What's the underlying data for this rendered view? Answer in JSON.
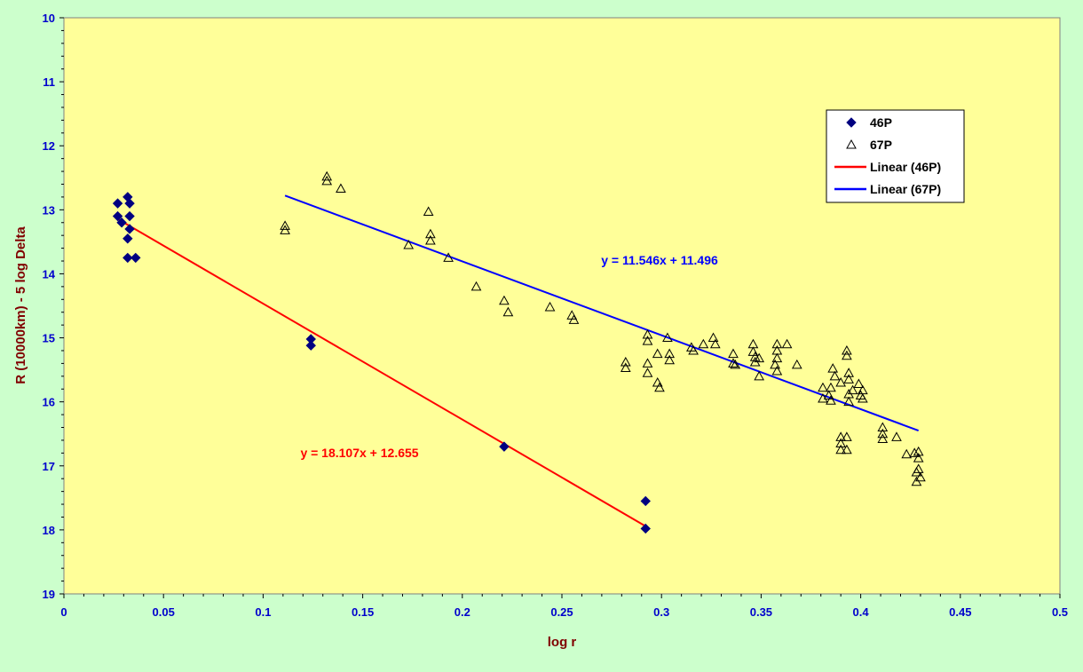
{
  "chart_data": {
    "type": "scatter",
    "title": "",
    "xlabel": "log r",
    "ylabel": "R (10000km) - 5 log Delta",
    "xlim": [
      0,
      0.5
    ],
    "ylim": [
      10,
      19
    ],
    "y_inverted": true,
    "x_ticks": [
      "0",
      "0.05",
      "0.1",
      "0.15",
      "0.2",
      "0.25",
      "0.3",
      "0.35",
      "0.4",
      "0.45",
      "0.5"
    ],
    "y_ticks": [
      "10",
      "11",
      "12",
      "13",
      "14",
      "15",
      "16",
      "17",
      "18",
      "19"
    ],
    "grid": false,
    "legend_position": "top-right",
    "colors": {
      "background": "#ccffcc",
      "plot_area": "#ffff99",
      "axis_text_x": "#0000cc",
      "axis_text_y": "#0000cc",
      "axis_title": "#800000",
      "series_46P": "#000080",
      "series_67P": "#000000",
      "fit_46P": "#ff0000",
      "fit_67P": "#0000ff"
    },
    "series": [
      {
        "name": "46P",
        "marker": "diamond",
        "points": [
          [
            0.027,
            12.9
          ],
          [
            0.027,
            13.1
          ],
          [
            0.029,
            13.2
          ],
          [
            0.032,
            12.8
          ],
          [
            0.033,
            12.9
          ],
          [
            0.033,
            13.1
          ],
          [
            0.033,
            13.3
          ],
          [
            0.032,
            13.45
          ],
          [
            0.032,
            13.75
          ],
          [
            0.036,
            13.75
          ],
          [
            0.124,
            15.02
          ],
          [
            0.124,
            15.12
          ],
          [
            0.221,
            16.7
          ],
          [
            0.292,
            17.55
          ],
          [
            0.292,
            17.98
          ]
        ]
      },
      {
        "name": "67P",
        "marker": "triangle-open",
        "points": [
          [
            0.111,
            13.25
          ],
          [
            0.111,
            13.32
          ],
          [
            0.132,
            12.48
          ],
          [
            0.132,
            12.55
          ],
          [
            0.139,
            12.67
          ],
          [
            0.173,
            13.55
          ],
          [
            0.183,
            13.03
          ],
          [
            0.184,
            13.38
          ],
          [
            0.184,
            13.48
          ],
          [
            0.193,
            13.75
          ],
          [
            0.207,
            14.2
          ],
          [
            0.221,
            14.42
          ],
          [
            0.223,
            14.6
          ],
          [
            0.244,
            14.52
          ],
          [
            0.255,
            14.65
          ],
          [
            0.256,
            14.72
          ],
          [
            0.282,
            15.38
          ],
          [
            0.282,
            15.47
          ],
          [
            0.293,
            14.95
          ],
          [
            0.293,
            15.05
          ],
          [
            0.293,
            15.4
          ],
          [
            0.293,
            15.55
          ],
          [
            0.298,
            15.7
          ],
          [
            0.298,
            15.25
          ],
          [
            0.299,
            15.78
          ],
          [
            0.303,
            15.0
          ],
          [
            0.304,
            15.25
          ],
          [
            0.304,
            15.35
          ],
          [
            0.315,
            15.15
          ],
          [
            0.316,
            15.2
          ],
          [
            0.321,
            15.1
          ],
          [
            0.326,
            15.0
          ],
          [
            0.327,
            15.1
          ],
          [
            0.336,
            15.25
          ],
          [
            0.336,
            15.4
          ],
          [
            0.337,
            15.42
          ],
          [
            0.346,
            15.1
          ],
          [
            0.346,
            15.22
          ],
          [
            0.347,
            15.3
          ],
          [
            0.347,
            15.38
          ],
          [
            0.349,
            15.32
          ],
          [
            0.349,
            15.6
          ],
          [
            0.357,
            15.42
          ],
          [
            0.358,
            15.1
          ],
          [
            0.358,
            15.2
          ],
          [
            0.358,
            15.32
          ],
          [
            0.358,
            15.52
          ],
          [
            0.363,
            15.1
          ],
          [
            0.368,
            15.42
          ],
          [
            0.381,
            15.78
          ],
          [
            0.381,
            15.95
          ],
          [
            0.384,
            15.9
          ],
          [
            0.385,
            15.78
          ],
          [
            0.385,
            15.98
          ],
          [
            0.386,
            15.48
          ],
          [
            0.387,
            15.6
          ],
          [
            0.39,
            15.7
          ],
          [
            0.39,
            16.55
          ],
          [
            0.39,
            16.65
          ],
          [
            0.39,
            16.75
          ],
          [
            0.393,
            15.2
          ],
          [
            0.393,
            15.28
          ],
          [
            0.393,
            16.55
          ],
          [
            0.393,
            16.75
          ],
          [
            0.394,
            15.55
          ],
          [
            0.394,
            15.65
          ],
          [
            0.394,
            15.88
          ],
          [
            0.394,
            16.0
          ],
          [
            0.396,
            15.82
          ],
          [
            0.399,
            15.72
          ],
          [
            0.4,
            15.9
          ],
          [
            0.401,
            15.82
          ],
          [
            0.401,
            15.95
          ],
          [
            0.411,
            16.4
          ],
          [
            0.411,
            16.5
          ],
          [
            0.411,
            16.58
          ],
          [
            0.418,
            16.55
          ],
          [
            0.423,
            16.82
          ],
          [
            0.427,
            16.8
          ],
          [
            0.428,
            17.1
          ],
          [
            0.428,
            17.25
          ],
          [
            0.429,
            17.05
          ],
          [
            0.429,
            16.78
          ],
          [
            0.429,
            16.88
          ],
          [
            0.43,
            17.18
          ]
        ]
      }
    ],
    "trendlines": [
      {
        "name": "Linear (46P)",
        "slope": 18.107,
        "intercept": 12.655,
        "x_range": [
          0.027,
          0.292
        ],
        "equation": "y = 18.107x + 12.655"
      },
      {
        "name": "Linear (67P)",
        "slope": 11.546,
        "intercept": 11.496,
        "x_range": [
          0.111,
          0.429
        ],
        "equation": "y = 11.546x + 11.496"
      }
    ],
    "legend": {
      "entries": [
        "46P",
        "67P",
        "Linear (46P)",
        "Linear (67P)"
      ]
    }
  }
}
